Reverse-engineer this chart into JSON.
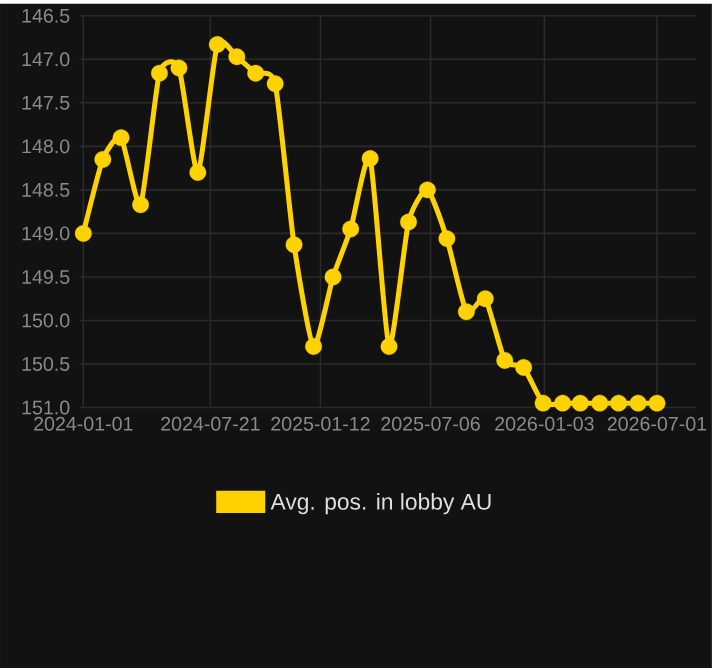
{
  "chart_data": {
    "type": "line",
    "x": [
      "2024-01-01",
      "2024-02-01",
      "2024-03-01",
      "2024-04-01",
      "2024-05-01",
      "2024-06-01",
      "2024-07-01",
      "2024-08-01",
      "2024-09-01",
      "2024-10-01",
      "2024-11-01",
      "2024-12-01",
      "2025-01-01",
      "2025-02-01",
      "2025-03-01",
      "2025-04-01",
      "2025-05-01",
      "2025-06-01",
      "2025-07-01",
      "2025-08-01",
      "2025-09-01",
      "2025-10-01",
      "2025-11-01",
      "2025-12-01",
      "2026-01-01",
      "2026-02-01",
      "2026-03-01",
      "2026-04-01",
      "2026-05-01",
      "2026-06-01",
      "2026-07-01"
    ],
    "series": [
      {
        "name": "Avg. pos. in lobby AU",
        "color": "#ffd200",
        "values": [
          149.0,
          148.15,
          147.9,
          148.67,
          147.16,
          147.1,
          148.3,
          146.83,
          146.97,
          147.16,
          147.28,
          149.13,
          150.3,
          149.5,
          148.95,
          148.14,
          150.3,
          148.87,
          148.5,
          149.06,
          149.9,
          149.75,
          150.46,
          150.54,
          150.95,
          150.95,
          150.95,
          150.95,
          150.95,
          150.95,
          150.95
        ]
      }
    ],
    "xlim": [
      "2023-12-26",
      "2026-09-01"
    ],
    "xticks": [
      "2024-01-01",
      "2024-07-21",
      "2025-01-12",
      "2025-07-06",
      "2026-01-03",
      "2026-07-01"
    ],
    "ylim": [
      151.0,
      146.5
    ],
    "yticks": [
      {
        "value": 146.5,
        "label": "146.5"
      },
      {
        "value": 147,
        "label": "147.0"
      },
      {
        "value": 147.5,
        "label": "147.5"
      },
      {
        "value": 148,
        "label": "148.0"
      },
      {
        "value": 148.5,
        "label": "148.5"
      },
      {
        "value": 149,
        "label": "149.0"
      },
      {
        "value": 149.5,
        "label": "149.5"
      },
      {
        "value": 150,
        "label": "150.0"
      },
      {
        "value": 150.5,
        "label": "150.5"
      },
      {
        "value": 151,
        "label": "151.0"
      }
    ],
    "grid": true,
    "legend": "bottom",
    "marker": "circle",
    "line_style": "solid"
  }
}
